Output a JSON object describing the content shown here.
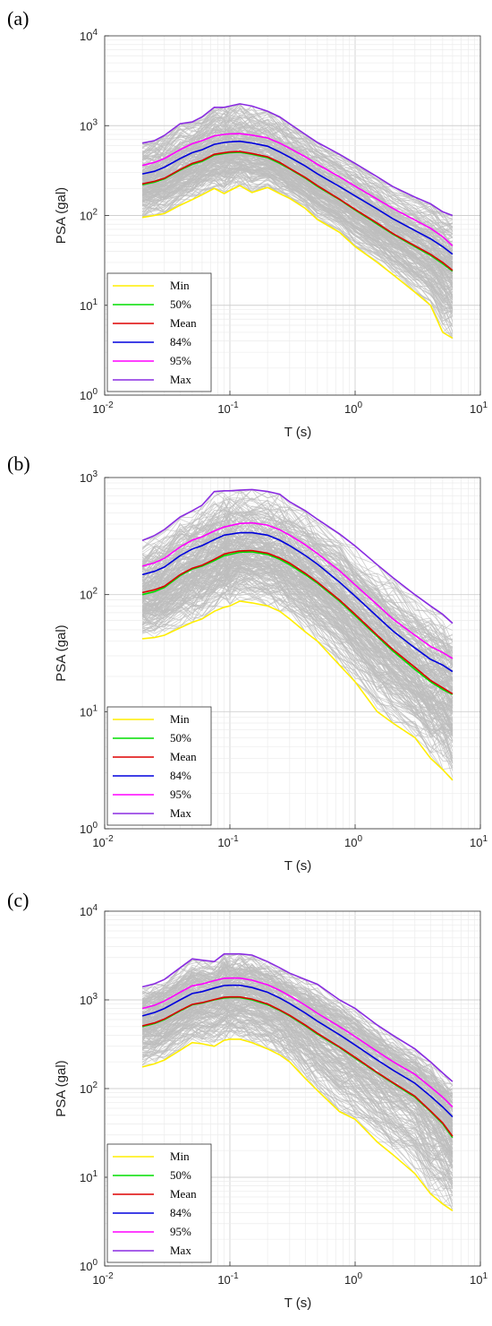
{
  "chart_data": [
    {
      "type": "line",
      "panel_label": "(a)",
      "xlabel": "T (s)",
      "ylabel": "PSA (gal)",
      "x_scale": "log",
      "y_scale": "log",
      "xlim": [
        0.01,
        10
      ],
      "ylim": [
        1,
        10000
      ],
      "x_ticks": [
        0.01,
        0.1,
        1,
        10
      ],
      "x_tick_labels": [
        [
          "10",
          "-2"
        ],
        [
          "10",
          "-1"
        ],
        [
          "10",
          "0"
        ],
        [
          "10",
          "1"
        ]
      ],
      "y_ticks": [
        1,
        10,
        100,
        1000,
        10000
      ],
      "y_tick_labels": [
        [
          "10",
          "0"
        ],
        [
          "10",
          "1"
        ],
        [
          "10",
          "2"
        ],
        [
          "10",
          "3"
        ],
        [
          "10",
          "4"
        ]
      ],
      "grid": true,
      "legend_position": "lower-left",
      "x": [
        0.02,
        0.025,
        0.03,
        0.04,
        0.05,
        0.06,
        0.075,
        0.09,
        0.1,
        0.12,
        0.15,
        0.2,
        0.25,
        0.3,
        0.4,
        0.5,
        0.75,
        1.0,
        1.5,
        2.0,
        3.0,
        4.0,
        5.0,
        6.0
      ],
      "series": [
        {
          "name": "Min",
          "color": "#ffee00",
          "values": [
            95,
            100,
            105,
            130,
            150,
            170,
            200,
            175,
            190,
            215,
            180,
            205,
            175,
            155,
            120,
            90,
            65,
            45,
            30,
            22,
            14,
            10,
            5,
            4.3
          ]
        },
        {
          "name": "50%",
          "color": "#00dd00",
          "values": [
            220,
            235,
            255,
            320,
            370,
            400,
            470,
            490,
            500,
            505,
            480,
            440,
            380,
            330,
            260,
            210,
            150,
            115,
            80,
            62,
            45,
            36,
            29,
            24
          ]
        },
        {
          "name": "Mean",
          "color": "#dd0000",
          "values": [
            225,
            240,
            260,
            325,
            380,
            410,
            480,
            500,
            510,
            515,
            490,
            450,
            390,
            335,
            265,
            215,
            152,
            117,
            82,
            63,
            46,
            37,
            30,
            24.5
          ]
        },
        {
          "name": "84%",
          "color": "#0000dd",
          "values": [
            290,
            310,
            345,
            430,
            500,
            540,
            620,
            650,
            660,
            670,
            640,
            590,
            510,
            445,
            355,
            290,
            210,
            165,
            118,
            92,
            68,
            55,
            45,
            37
          ]
        },
        {
          "name": "95%",
          "color": "#ff00ff",
          "values": [
            360,
            390,
            430,
            540,
            630,
            680,
            770,
            800,
            810,
            815,
            785,
            730,
            640,
            560,
            450,
            370,
            270,
            212,
            152,
            120,
            89,
            72,
            58,
            46
          ]
        },
        {
          "name": "Max",
          "color": "#8a2be2",
          "values": [
            640,
            680,
            780,
            1050,
            1100,
            1250,
            1600,
            1600,
            1650,
            1750,
            1650,
            1450,
            1250,
            1050,
            800,
            650,
            480,
            380,
            270,
            210,
            160,
            135,
            110,
            100
          ]
        }
      ]
    },
    {
      "type": "line",
      "panel_label": "(b)",
      "xlabel": "T (s)",
      "ylabel": "PSA (gal)",
      "x_scale": "log",
      "y_scale": "log",
      "xlim": [
        0.01,
        10
      ],
      "ylim": [
        1,
        1000
      ],
      "x_ticks": [
        0.01,
        0.1,
        1,
        10
      ],
      "x_tick_labels": [
        [
          "10",
          "-2"
        ],
        [
          "10",
          "-1"
        ],
        [
          "10",
          "0"
        ],
        [
          "10",
          "1"
        ]
      ],
      "y_ticks": [
        1,
        10,
        100,
        1000
      ],
      "y_tick_labels": [
        [
          "10",
          "0"
        ],
        [
          "10",
          "1"
        ],
        [
          "10",
          "2"
        ],
        [
          "10",
          "3"
        ]
      ],
      "grid": true,
      "legend_position": "lower-left",
      "x": [
        0.02,
        0.025,
        0.03,
        0.04,
        0.05,
        0.06,
        0.075,
        0.09,
        0.1,
        0.12,
        0.15,
        0.2,
        0.25,
        0.3,
        0.4,
        0.5,
        0.75,
        1.0,
        1.5,
        2.0,
        3.0,
        4.0,
        5.0,
        6.0
      ],
      "series": [
        {
          "name": "Min",
          "color": "#ffee00",
          "values": [
            42,
            43,
            45,
            52,
            58,
            62,
            72,
            78,
            80,
            88,
            85,
            80,
            72,
            62,
            48,
            40,
            25,
            18,
            10,
            8,
            6,
            4,
            3.2,
            2.6
          ]
        },
        {
          "name": "50%",
          "color": "#00dd00",
          "values": [
            100,
            106,
            115,
            145,
            165,
            175,
            195,
            215,
            220,
            230,
            232,
            220,
            200,
            180,
            148,
            125,
            88,
            66,
            44,
            33,
            23,
            18,
            15.5,
            14
          ]
        },
        {
          "name": "Mean",
          "color": "#dd0000",
          "values": [
            104,
            110,
            118,
            148,
            168,
            178,
            200,
            222,
            228,
            236,
            238,
            226,
            206,
            186,
            152,
            128,
            90,
            68,
            45,
            34,
            24,
            18.5,
            16,
            14.2
          ]
        },
        {
          "name": "84%",
          "color": "#0000dd",
          "values": [
            148,
            158,
            172,
            215,
            245,
            262,
            295,
            322,
            328,
            338,
            338,
            322,
            292,
            262,
            216,
            182,
            128,
            97,
            65,
            49,
            35,
            28,
            25,
            22
          ]
        },
        {
          "name": "95%",
          "color": "#ff00ff",
          "values": [
            175,
            187,
            204,
            255,
            292,
            312,
            350,
            378,
            388,
            405,
            410,
            392,
            358,
            322,
            266,
            224,
            160,
            121,
            82,
            62,
            45,
            36,
            32,
            28.5
          ]
        },
        {
          "name": "Max",
          "color": "#8a2be2",
          "values": [
            290,
            320,
            360,
            460,
            520,
            580,
            760,
            770,
            770,
            780,
            790,
            760,
            720,
            620,
            520,
            440,
            330,
            260,
            180,
            140,
            100,
            80,
            68,
            57
          ]
        }
      ]
    },
    {
      "type": "line",
      "panel_label": "(c)",
      "xlabel": "T (s)",
      "ylabel": "PSA (gal)",
      "x_scale": "log",
      "y_scale": "log",
      "xlim": [
        0.01,
        10
      ],
      "ylim": [
        1,
        10000
      ],
      "x_ticks": [
        0.01,
        0.1,
        1,
        10
      ],
      "x_tick_labels": [
        [
          "10",
          "-2"
        ],
        [
          "10",
          "-1"
        ],
        [
          "10",
          "0"
        ],
        [
          "10",
          "1"
        ]
      ],
      "y_ticks": [
        1,
        10,
        100,
        1000,
        10000
      ],
      "y_tick_labels": [
        [
          "10",
          "0"
        ],
        [
          "10",
          "1"
        ],
        [
          "10",
          "2"
        ],
        [
          "10",
          "3"
        ],
        [
          "10",
          "4"
        ]
      ],
      "grid": true,
      "legend_position": "lower-left",
      "x": [
        0.02,
        0.025,
        0.03,
        0.04,
        0.05,
        0.06,
        0.075,
        0.09,
        0.1,
        0.12,
        0.15,
        0.2,
        0.25,
        0.3,
        0.4,
        0.5,
        0.75,
        1.0,
        1.5,
        2.0,
        3.0,
        4.0,
        5.0,
        6.0
      ],
      "series": [
        {
          "name": "Min",
          "color": "#ffee00",
          "values": [
            175,
            190,
            210,
            270,
            330,
            320,
            300,
            350,
            360,
            360,
            330,
            280,
            240,
            200,
            130,
            95,
            55,
            45,
            25,
            18,
            11,
            6.5,
            5,
            4.2
          ]
        },
        {
          "name": "50%",
          "color": "#00dd00",
          "values": [
            500,
            540,
            600,
            750,
            880,
            920,
            1000,
            1050,
            1060,
            1060,
            1000,
            880,
            760,
            660,
            510,
            410,
            290,
            220,
            150,
            115,
            80,
            55,
            40,
            28
          ]
        },
        {
          "name": "Mean",
          "color": "#dd0000",
          "values": [
            510,
            550,
            610,
            760,
            890,
            930,
            1010,
            1070,
            1080,
            1080,
            1020,
            900,
            770,
            670,
            520,
            420,
            295,
            225,
            152,
            117,
            82,
            56,
            41,
            29
          ]
        },
        {
          "name": "84%",
          "color": "#0000dd",
          "values": [
            660,
            720,
            800,
            1000,
            1180,
            1240,
            1360,
            1450,
            1460,
            1460,
            1380,
            1220,
            1050,
            910,
            710,
            575,
            405,
            310,
            210,
            162,
            115,
            82,
            62,
            48
          ]
        },
        {
          "name": "95%",
          "color": "#ff00ff",
          "values": [
            800,
            870,
            970,
            1220,
            1440,
            1510,
            1650,
            1750,
            1760,
            1760,
            1670,
            1480,
            1280,
            1110,
            870,
            705,
            500,
            385,
            262,
            202,
            145,
            104,
            80,
            62
          ]
        },
        {
          "name": "Max",
          "color": "#8a2be2",
          "values": [
            1400,
            1520,
            1700,
            2300,
            2900,
            2800,
            2700,
            3300,
            3300,
            3300,
            3200,
            2700,
            2300,
            2000,
            1700,
            1500,
            1000,
            800,
            520,
            400,
            280,
            200,
            150,
            120
          ]
        }
      ]
    }
  ]
}
